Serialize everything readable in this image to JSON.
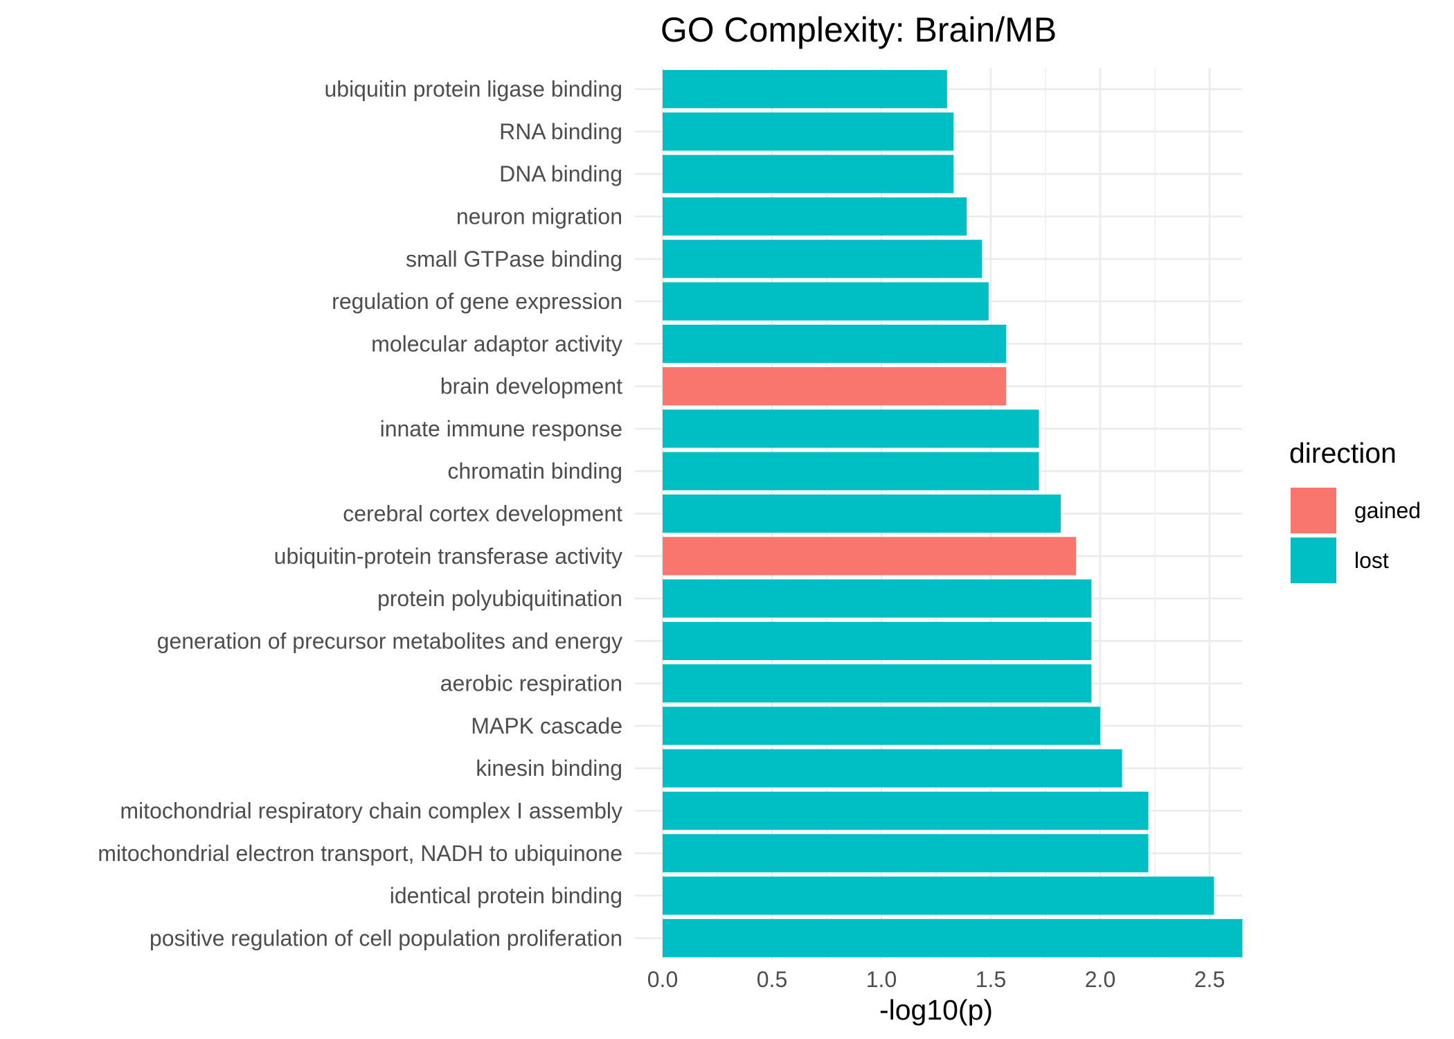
{
  "chart_data": {
    "type": "bar",
    "orientation": "horizontal",
    "title": "GO Complexity: Brain/MB",
    "xlabel": "-log10(p)",
    "ylabel": "",
    "xlim": [
      0,
      2.65
    ],
    "xticks": [
      "0.0",
      "0.5",
      "1.0",
      "1.5",
      "2.0",
      "2.5"
    ],
    "xtick_values": [
      0,
      0.5,
      1.0,
      1.5,
      2.0,
      2.5
    ],
    "grid": true,
    "categories": [
      "ubiquitin protein ligase binding",
      "RNA binding",
      "DNA binding",
      "neuron migration",
      "small GTPase binding",
      "regulation of gene expression",
      "molecular adaptor activity",
      "brain development",
      "innate immune response",
      "chromatin binding",
      "cerebral cortex development",
      "ubiquitin-protein transferase activity",
      "protein polyubiquitination",
      "generation of precursor metabolites and energy",
      "aerobic respiration",
      "MAPK cascade",
      "kinesin binding",
      "mitochondrial respiratory chain complex I assembly",
      "mitochondrial electron transport, NADH to ubiquinone",
      "identical protein binding",
      "positive regulation of cell population proliferation"
    ],
    "values": [
      1.3,
      1.33,
      1.33,
      1.39,
      1.46,
      1.49,
      1.57,
      1.57,
      1.72,
      1.72,
      1.82,
      1.89,
      1.96,
      1.96,
      1.96,
      2.0,
      2.1,
      2.22,
      2.22,
      2.52,
      2.65
    ],
    "direction": [
      "lost",
      "lost",
      "lost",
      "lost",
      "lost",
      "lost",
      "lost",
      "gained",
      "lost",
      "lost",
      "lost",
      "gained",
      "lost",
      "lost",
      "lost",
      "lost",
      "lost",
      "lost",
      "lost",
      "lost",
      "lost"
    ],
    "legend": {
      "title": "direction",
      "position": "right",
      "entries": [
        {
          "label": "gained",
          "color": "#F8766D"
        },
        {
          "label": "lost",
          "color": "#00BFC4"
        }
      ]
    },
    "colors": {
      "gained": "#F8766D",
      "lost": "#00BFC4",
      "grid": "#ebebeb"
    }
  }
}
